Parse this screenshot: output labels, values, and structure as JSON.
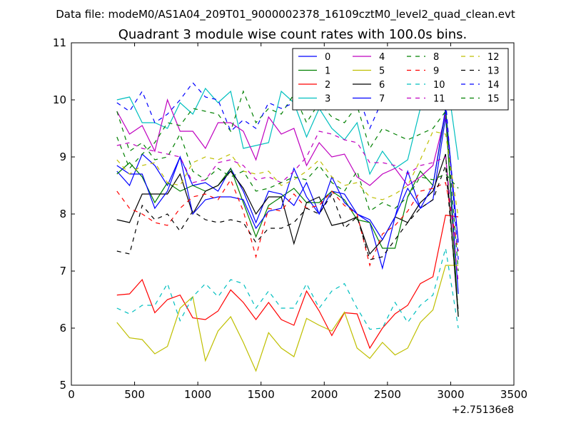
{
  "chart_data": {
    "type": "line",
    "suptitle": "Data file: modeM0/AS1A04_209T01_9000002378_16109cztM0_level2_quad_clean.evt",
    "title": "Quadrant 3 module wise count rates with 100.0s bins.",
    "xlabel": "",
    "ylabel": "",
    "x_offset_label": "+2.75136e8",
    "xlim": [
      0,
      3500
    ],
    "ylim": [
      5,
      11
    ],
    "xticks": [
      0,
      500,
      1000,
      1500,
      2000,
      2500,
      3000,
      3500
    ],
    "yticks": [
      5,
      6,
      7,
      8,
      9,
      10,
      11
    ],
    "grid": false,
    "legend_position": "top-right",
    "legend_columns": 4,
    "x": [
      360,
      460,
      560,
      660,
      760,
      860,
      960,
      1060,
      1160,
      1260,
      1360,
      1460,
      1560,
      1660,
      1760,
      1860,
      1960,
      2060,
      2160,
      2260,
      2360,
      2460,
      2560,
      2660,
      2760,
      2860,
      2960,
      3060
    ],
    "series": [
      {
        "name": "0",
        "color": "#0000ff",
        "dash": "solid",
        "values": [
          8.75,
          8.5,
          9.05,
          8.85,
          8.5,
          9.0,
          8.5,
          8.55,
          8.4,
          8.8,
          8.4,
          7.85,
          8.4,
          8.35,
          8.15,
          8.55,
          8.0,
          8.4,
          8.35,
          8.0,
          7.85,
          7.05,
          7.95,
          8.45,
          8.1,
          8.25,
          9.7,
          6.6
        ]
      },
      {
        "name": "1",
        "color": "#008000",
        "dash": "solid",
        "values": [
          8.7,
          8.9,
          8.65,
          8.2,
          8.55,
          8.4,
          8.5,
          8.4,
          8.5,
          8.8,
          8.2,
          7.6,
          8.15,
          8.3,
          8.45,
          8.2,
          8.2,
          8.4,
          8.25,
          7.9,
          7.85,
          7.4,
          7.4,
          8.3,
          8.75,
          8.5,
          9.8,
          6.2
        ]
      },
      {
        "name": "2",
        "color": "#ff0000",
        "dash": "solid",
        "values": [
          6.58,
          6.6,
          6.85,
          6.27,
          6.5,
          6.58,
          6.18,
          6.15,
          6.3,
          6.67,
          6.45,
          6.15,
          6.45,
          6.15,
          6.05,
          6.65,
          6.3,
          5.87,
          6.27,
          6.25,
          5.65,
          6.0,
          6.25,
          6.4,
          6.78,
          6.9,
          7.98,
          7.95
        ]
      },
      {
        "name": "3",
        "color": "#00bfbf",
        "dash": "solid",
        "values": [
          10.0,
          10.05,
          9.6,
          9.6,
          9.5,
          9.95,
          9.75,
          10.2,
          9.95,
          10.15,
          9.15,
          9.2,
          9.25,
          10.15,
          9.95,
          9.35,
          9.85,
          9.5,
          9.3,
          9.6,
          8.7,
          9.1,
          8.8,
          8.95,
          9.85,
          10.35,
          10.55,
          8.95
        ]
      },
      {
        "name": "4",
        "color": "#bf00bf",
        "dash": "solid",
        "values": [
          9.8,
          9.4,
          9.55,
          9.1,
          10.0,
          9.45,
          9.45,
          9.15,
          9.6,
          9.6,
          9.45,
          8.95,
          9.7,
          9.4,
          9.5,
          8.85,
          9.25,
          9.0,
          9.05,
          8.65,
          8.5,
          8.7,
          8.8,
          8.5,
          8.65,
          8.85,
          9.75,
          7.5
        ]
      },
      {
        "name": "5",
        "color": "#bfbf00",
        "dash": "solid",
        "values": [
          6.1,
          5.83,
          5.8,
          5.55,
          5.68,
          6.35,
          6.55,
          5.43,
          5.95,
          6.2,
          5.75,
          5.25,
          5.92,
          5.65,
          5.5,
          6.17,
          6.05,
          5.95,
          6.28,
          5.65,
          5.47,
          5.75,
          5.53,
          5.65,
          6.1,
          6.32,
          7.1,
          7.1
        ]
      },
      {
        "name": "6",
        "color": "#000000",
        "dash": "solid",
        "values": [
          7.9,
          7.85,
          8.35,
          8.35,
          8.35,
          8.7,
          8.0,
          8.4,
          8.5,
          8.75,
          8.45,
          8.0,
          8.3,
          8.3,
          7.48,
          8.2,
          8.3,
          7.8,
          7.85,
          7.95,
          7.3,
          7.55,
          7.95,
          7.85,
          8.2,
          8.4,
          9.05,
          6.2
        ]
      },
      {
        "name": "7",
        "color": "#0000ff",
        "dash": "solid",
        "values": [
          8.85,
          8.7,
          8.7,
          8.1,
          8.4,
          9.0,
          8.0,
          8.25,
          8.3,
          8.3,
          8.25,
          7.75,
          8.05,
          8.1,
          8.8,
          8.3,
          8.0,
          8.65,
          8.2,
          8.0,
          7.9,
          7.55,
          7.95,
          8.75,
          8.1,
          8.5,
          9.85,
          7.5
        ]
      },
      {
        "name": "8",
        "color": "#008000",
        "dash": "dashed",
        "values": [
          9.35,
          8.8,
          9.05,
          9.25,
          9.6,
          9.55,
          9.85,
          9.8,
          9.75,
          9.45,
          10.15,
          9.6,
          9.85,
          9.75,
          10.1,
          9.6,
          9.95,
          9.7,
          9.6,
          9.9,
          9.15,
          9.5,
          9.4,
          9.3,
          9.4,
          9.5,
          9.8,
          7.0
        ]
      },
      {
        "name": "9",
        "color": "#ff0000",
        "dash": "dashed",
        "values": [
          8.4,
          8.1,
          8.0,
          7.85,
          7.8,
          8.1,
          8.3,
          8.35,
          8.25,
          8.6,
          8.05,
          7.25,
          8.1,
          8.05,
          8.35,
          8.1,
          8.15,
          8.4,
          8.15,
          8.0,
          7.1,
          7.65,
          7.8,
          8.05,
          8.4,
          8.45,
          8.55,
          7.35
        ]
      },
      {
        "name": "10",
        "color": "#00bfbf",
        "dash": "dashed",
        "values": [
          6.35,
          6.25,
          6.4,
          6.4,
          6.78,
          6.13,
          6.55,
          6.78,
          6.55,
          6.85,
          6.78,
          6.35,
          6.65,
          6.35,
          6.35,
          6.78,
          6.35,
          6.65,
          6.78,
          6.35,
          5.98,
          6.0,
          6.45,
          6.1,
          6.4,
          6.58,
          7.4,
          6.0
        ]
      },
      {
        "name": "11",
        "color": "#bf00bf",
        "dash": "dashed",
        "values": [
          9.2,
          9.25,
          9.15,
          9.1,
          9.05,
          9.0,
          8.55,
          8.6,
          8.9,
          8.95,
          8.85,
          8.6,
          8.65,
          8.55,
          8.75,
          9.0,
          9.45,
          9.4,
          9.3,
          9.25,
          8.9,
          8.9,
          8.85,
          8.7,
          8.85,
          8.9,
          9.0,
          6.8
        ]
      },
      {
        "name": "12",
        "color": "#bfbf00",
        "dash": "dashed",
        "values": [
          8.95,
          8.7,
          8.85,
          8.9,
          8.55,
          8.5,
          8.9,
          9.0,
          8.95,
          9.05,
          8.75,
          8.7,
          8.75,
          8.5,
          8.6,
          8.75,
          8.95,
          8.65,
          8.5,
          8.55,
          8.3,
          8.25,
          8.35,
          8.5,
          8.95,
          9.45,
          9.4,
          7.95
        ]
      },
      {
        "name": "13",
        "color": "#000000",
        "dash": "dashed",
        "values": [
          7.35,
          7.3,
          8.15,
          7.9,
          8.0,
          7.7,
          8.05,
          7.9,
          7.85,
          7.9,
          7.85,
          7.5,
          7.75,
          7.75,
          7.85,
          8.1,
          8.0,
          8.35,
          7.75,
          7.95,
          7.2,
          7.25,
          7.55,
          7.85,
          8.1,
          8.25,
          8.85,
          6.3
        ]
      },
      {
        "name": "14",
        "color": "#0000ff",
        "dash": "dashed",
        "values": [
          9.95,
          9.8,
          10.15,
          9.6,
          9.75,
          10.0,
          10.3,
          10.05,
          10.0,
          9.45,
          9.65,
          9.5,
          9.95,
          9.85,
          9.95,
          10.45,
          10.05,
          10.1,
          9.9,
          10.15,
          9.5,
          10.0,
          10.2,
          10.5,
          10.45,
          10.6,
          10.0,
          7.2
        ]
      },
      {
        "name": "15",
        "color": "#008000",
        "dash": "dashed",
        "values": [
          9.8,
          9.1,
          9.25,
          8.95,
          9.0,
          9.4,
          8.75,
          8.6,
          8.8,
          8.65,
          8.75,
          8.4,
          8.45,
          8.55,
          8.65,
          8.6,
          8.85,
          8.55,
          8.4,
          8.75,
          8.05,
          8.2,
          8.1,
          8.3,
          8.65,
          8.6,
          8.7,
          8.45
        ]
      }
    ]
  }
}
